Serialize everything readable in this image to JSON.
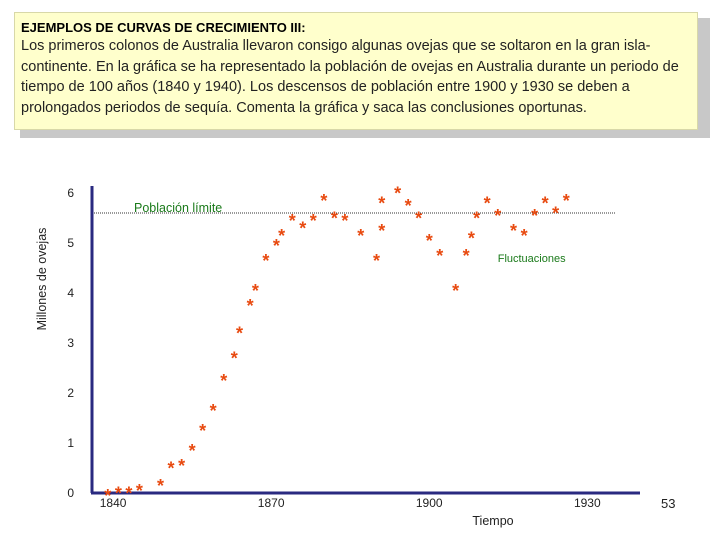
{
  "slide": {
    "heading": "EJEMPLOS DE CURVAS DE CRECIMIENTO III:",
    "body": "Los primeros colonos de Australia llevaron consigo algunas ovejas que se soltaron en la gran isla-continente. En la gráfica se ha representado la población de ovejas en Australia durante un periodo de tiempo de 100 años (1840 y 1940). Los descensos de población entre 1900 y 1930 se deben a prolongados periodos de sequía. Comenta la gráfica y saca las conclusiones oportunas.",
    "page_number": "53"
  },
  "chart_data": {
    "type": "scatter",
    "marker": "*",
    "xlabel": "Tiempo",
    "ylabel": "Millones de ovejas",
    "xlim": [
      1836,
      1940
    ],
    "ylim": [
      0,
      6
    ],
    "xticks": [
      "1840",
      "1870",
      "1900",
      "1930"
    ],
    "xtick_values": [
      1840,
      1870,
      1900,
      1930
    ],
    "yticks": [
      "0",
      "1",
      "2",
      "3",
      "4",
      "5",
      "6"
    ],
    "reference_line": {
      "label": "Población límite",
      "y": 5.6
    },
    "annotations": [
      {
        "text": "Fluctuaciones",
        "x": 1913,
        "y": 4.7
      }
    ],
    "colors": {
      "points": "#e84a10",
      "axes": "#2a2a80",
      "labels": "#1a7a1a"
    },
    "points": [
      {
        "x": 1839,
        "y": 0.0
      },
      {
        "x": 1841,
        "y": 0.05
      },
      {
        "x": 1843,
        "y": 0.05
      },
      {
        "x": 1845,
        "y": 0.1
      },
      {
        "x": 1849,
        "y": 0.2
      },
      {
        "x": 1851,
        "y": 0.55
      },
      {
        "x": 1853,
        "y": 0.6
      },
      {
        "x": 1855,
        "y": 0.9
      },
      {
        "x": 1857,
        "y": 1.3
      },
      {
        "x": 1859,
        "y": 1.7
      },
      {
        "x": 1861,
        "y": 2.3
      },
      {
        "x": 1863,
        "y": 2.75
      },
      {
        "x": 1864,
        "y": 3.25
      },
      {
        "x": 1866,
        "y": 3.8
      },
      {
        "x": 1867,
        "y": 4.1
      },
      {
        "x": 1869,
        "y": 4.7
      },
      {
        "x": 1871,
        "y": 5.0
      },
      {
        "x": 1872,
        "y": 5.2
      },
      {
        "x": 1874,
        "y": 5.5
      },
      {
        "x": 1876,
        "y": 5.35
      },
      {
        "x": 1878,
        "y": 5.5
      },
      {
        "x": 1880,
        "y": 5.9
      },
      {
        "x": 1882,
        "y": 5.55
      },
      {
        "x": 1884,
        "y": 5.5
      },
      {
        "x": 1887,
        "y": 5.2
      },
      {
        "x": 1890,
        "y": 4.7
      },
      {
        "x": 1891,
        "y": 5.3
      },
      {
        "x": 1891,
        "y": 5.85
      },
      {
        "x": 1894,
        "y": 6.05
      },
      {
        "x": 1896,
        "y": 5.8
      },
      {
        "x": 1898,
        "y": 5.55
      },
      {
        "x": 1900,
        "y": 5.1
      },
      {
        "x": 1902,
        "y": 4.8
      },
      {
        "x": 1905,
        "y": 4.1
      },
      {
        "x": 1907,
        "y": 4.8
      },
      {
        "x": 1908,
        "y": 5.15
      },
      {
        "x": 1909,
        "y": 5.55
      },
      {
        "x": 1911,
        "y": 5.85
      },
      {
        "x": 1913,
        "y": 5.6
      },
      {
        "x": 1916,
        "y": 5.3
      },
      {
        "x": 1918,
        "y": 5.2
      },
      {
        "x": 1920,
        "y": 5.6
      },
      {
        "x": 1922,
        "y": 5.85
      },
      {
        "x": 1924,
        "y": 5.65
      },
      {
        "x": 1926,
        "y": 5.9
      }
    ]
  }
}
